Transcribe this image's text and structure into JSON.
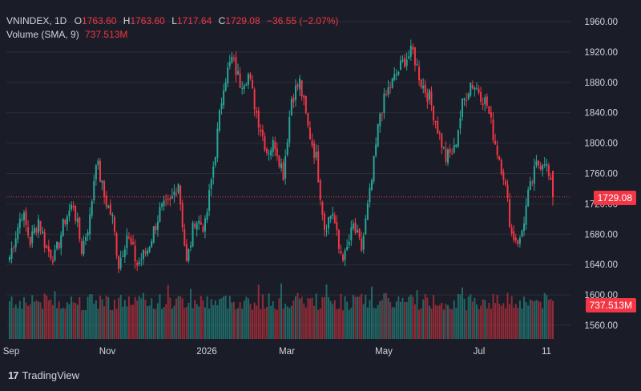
{
  "legend": {
    "symbol": "VNINDEX, 1D",
    "o_label": "O",
    "o_value": "1763.60",
    "h_label": "H",
    "h_value": "1763.60",
    "l_label": "L",
    "l_value": "1717.64",
    "c_label": "C",
    "c_value": "1729.08",
    "change": "−36.55 (−2.07%)",
    "volume_label": "Volume (SMA, 9)",
    "volume_value": "737.513M"
  },
  "badges": {
    "price": "1729.08",
    "volume": "737.513M"
  },
  "branding": {
    "logo_text": "TradingView",
    "logo_mark": "17"
  },
  "colors": {
    "up": "#26a69a",
    "down": "#f23645",
    "background": "#1a1d27",
    "grid": "#2a2e39",
    "text": "#d1d4dc"
  },
  "chart_data": {
    "type": "candlestick",
    "title": "VNINDEX, 1D",
    "y_ticks": [
      1560,
      1600,
      1640,
      1680,
      1720,
      1760,
      1800,
      1840,
      1880,
      1920,
      1960
    ],
    "y_tick_labels": [
      "1560.00",
      "1600.00",
      "1640.00",
      "1680.00",
      "1720.00",
      "1760.00",
      "1800.00",
      "1840.00",
      "1880.00",
      "1920.00",
      "1960.00"
    ],
    "ylim": [
      1540,
      1975
    ],
    "x_labels": [
      "Sep",
      "Nov",
      "2026",
      "Mar",
      "May",
      "Jul",
      "11"
    ],
    "last_price": 1729.08,
    "series": [
      {
        "name": "Price",
        "anchors": [
          [
            0,
            1650
          ],
          [
            6,
            1710
          ],
          [
            10,
            1670
          ],
          [
            14,
            1700
          ],
          [
            18,
            1660
          ],
          [
            22,
            1650
          ],
          [
            27,
            1700
          ],
          [
            31,
            1720
          ],
          [
            35,
            1660
          ],
          [
            39,
            1700
          ],
          [
            42,
            1780
          ],
          [
            46,
            1730
          ],
          [
            50,
            1700
          ],
          [
            53,
            1640
          ],
          [
            57,
            1680
          ],
          [
            62,
            1640
          ],
          [
            67,
            1660
          ],
          [
            73,
            1710
          ],
          [
            78,
            1720
          ],
          [
            82,
            1750
          ],
          [
            86,
            1640
          ],
          [
            90,
            1700
          ],
          [
            95,
            1690
          ],
          [
            100,
            1790
          ],
          [
            104,
            1880
          ],
          [
            108,
            1910
          ],
          [
            112,
            1880
          ],
          [
            116,
            1890
          ],
          [
            120,
            1840
          ],
          [
            125,
            1790
          ],
          [
            129,
            1800
          ],
          [
            133,
            1760
          ],
          [
            137,
            1860
          ],
          [
            141,
            1880
          ],
          [
            145,
            1820
          ],
          [
            149,
            1780
          ],
          [
            153,
            1690
          ],
          [
            157,
            1710
          ],
          [
            160,
            1660
          ],
          [
            163,
            1650
          ],
          [
            167,
            1690
          ],
          [
            171,
            1660
          ],
          [
            176,
            1750
          ],
          [
            180,
            1840
          ],
          [
            184,
            1870
          ],
          [
            188,
            1890
          ],
          [
            192,
            1910
          ],
          [
            196,
            1920
          ],
          [
            200,
            1880
          ],
          [
            204,
            1860
          ],
          [
            208,
            1820
          ],
          [
            212,
            1780
          ],
          [
            216,
            1790
          ],
          [
            220,
            1850
          ],
          [
            224,
            1880
          ],
          [
            228,
            1870
          ],
          [
            232,
            1850
          ],
          [
            236,
            1800
          ],
          [
            240,
            1760
          ],
          [
            244,
            1680
          ],
          [
            248,
            1670
          ],
          [
            252,
            1730
          ],
          [
            256,
            1770
          ],
          [
            260,
            1780
          ],
          [
            264,
            1729
          ]
        ]
      },
      {
        "name": "Volume (SMA, 9)",
        "last_value": "737.513M",
        "base": 720,
        "range": [
          560,
          1020
        ]
      }
    ]
  }
}
